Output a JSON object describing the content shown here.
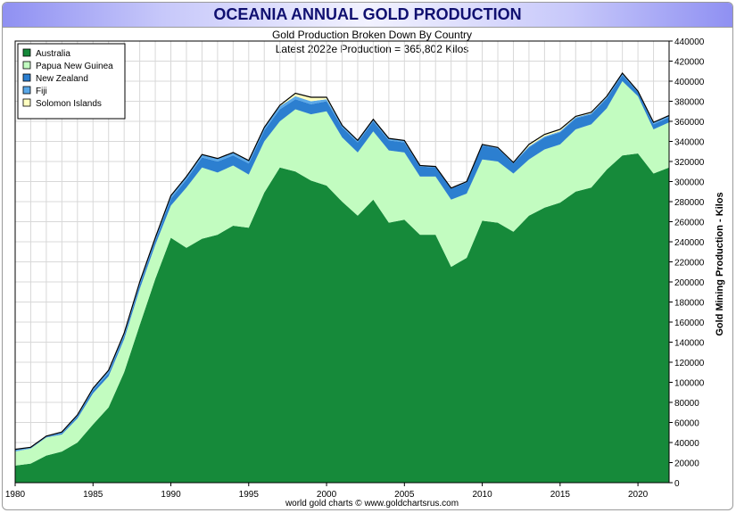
{
  "title": "OCEANIA ANNUAL GOLD PRODUCTION",
  "subtitle_line1": "Gold Production Broken Down By Country",
  "subtitle_line2": "Latest 2022e Production = 365,802 Kilos",
  "footer": "world gold charts © www.goldchartsrus.com",
  "colors": {
    "Australia": "#168a3a",
    "Papua New Guinea": "#c2fcc0",
    "New Zealand": "#2c7fd0",
    "Fiji": "#5aa8e8",
    "Solomon Islands": "#ffffc0",
    "grid": "#d8d8d8",
    "plot_border": "#000000",
    "title_text": "#101070"
  },
  "chart_data": {
    "type": "area",
    "stacked": true,
    "title": "OCEANIA ANNUAL GOLD PRODUCTION",
    "subtitle": "Gold Production Broken Down By Country",
    "annotation": "Latest 2022e Production = 365,802 Kilos",
    "xlabel": "",
    "ylabel": "Gold Mining Production - Kilos",
    "xlim": [
      1980,
      2022
    ],
    "ylim": [
      0,
      440000
    ],
    "x_ticks": [
      1980,
      1985,
      1990,
      1995,
      2000,
      2005,
      2010,
      2015,
      2020
    ],
    "y_ticks": [
      0,
      20000,
      40000,
      60000,
      80000,
      100000,
      120000,
      140000,
      160000,
      180000,
      200000,
      220000,
      240000,
      260000,
      280000,
      300000,
      320000,
      340000,
      360000,
      380000,
      400000,
      420000,
      440000
    ],
    "y_axis_side": "right",
    "grid": true,
    "legend_position": "top-left",
    "x": [
      1980,
      1981,
      1982,
      1983,
      1984,
      1985,
      1986,
      1987,
      1988,
      1989,
      1990,
      1991,
      1992,
      1993,
      1994,
      1995,
      1996,
      1997,
      1998,
      1999,
      2000,
      2001,
      2002,
      2003,
      2004,
      2005,
      2006,
      2007,
      2008,
      2009,
      2010,
      2011,
      2012,
      2013,
      2014,
      2015,
      2016,
      2017,
      2018,
      2019,
      2020,
      2021,
      2022
    ],
    "series": [
      {
        "name": "Australia",
        "values": [
          17000,
          19000,
          27000,
          31000,
          40000,
          58000,
          75000,
          110000,
          157000,
          203000,
          244000,
          234000,
          243000,
          247000,
          256000,
          254000,
          289000,
          314000,
          310000,
          301000,
          296000,
          280000,
          266000,
          282000,
          259000,
          262000,
          247000,
          247000,
          215000,
          224000,
          261000,
          259000,
          250000,
          266000,
          274000,
          279000,
          290000,
          294000,
          312000,
          326000,
          328000,
          308000,
          314000
        ]
      },
      {
        "name": "Papua New Guinea",
        "values": [
          14000,
          15000,
          18000,
          17000,
          24000,
          31000,
          31000,
          33000,
          36000,
          34000,
          32000,
          60000,
          71000,
          62000,
          60000,
          53000,
          51000,
          46000,
          62000,
          66000,
          74000,
          64000,
          63000,
          68000,
          72000,
          67000,
          58000,
          58000,
          67000,
          64000,
          61000,
          61000,
          58000,
          56000,
          58000,
          58000,
          62000,
          63000,
          61000,
          74000,
          57000,
          44000,
          45000
        ]
      },
      {
        "name": "New Zealand",
        "values": [
          200,
          300,
          400,
          1000,
          2000,
          3000,
          3000,
          3000,
          4000,
          4000,
          7000,
          8000,
          10000,
          11000,
          10000,
          11000,
          11000,
          12000,
          10000,
          10000,
          10000,
          10000,
          10000,
          10000,
          10000,
          10000,
          10000,
          9000,
          11000,
          11000,
          14000,
          13000,
          10000,
          12000,
          12000,
          12000,
          11000,
          10000,
          10000,
          6000,
          4000,
          5000,
          5000
        ]
      },
      {
        "name": "Fiji",
        "values": [
          2000,
          1000,
          1000,
          1500,
          1500,
          2000,
          3000,
          3000,
          3000,
          3000,
          3000,
          3000,
          3000,
          3000,
          3000,
          3000,
          3000,
          3000,
          3000,
          3000,
          2000,
          2000,
          2000,
          2000,
          2000,
          2000,
          1000,
          1000,
          500,
          1000,
          1000,
          1000,
          1000,
          1000,
          1000,
          1000,
          1000,
          1000,
          1000,
          2000,
          1000,
          2000,
          1800
        ]
      },
      {
        "name": "Solomon Islands",
        "values": [
          0,
          0,
          0,
          0,
          0,
          0,
          0,
          0,
          0,
          0,
          0,
          0,
          0,
          0,
          0,
          0,
          0,
          1000,
          3000,
          4000,
          2000,
          0,
          0,
          0,
          0,
          0,
          0,
          0,
          0,
          0,
          0,
          0,
          0,
          2000,
          2000,
          2000,
          1000,
          1000,
          1000,
          0,
          0,
          0,
          0
        ]
      }
    ]
  }
}
